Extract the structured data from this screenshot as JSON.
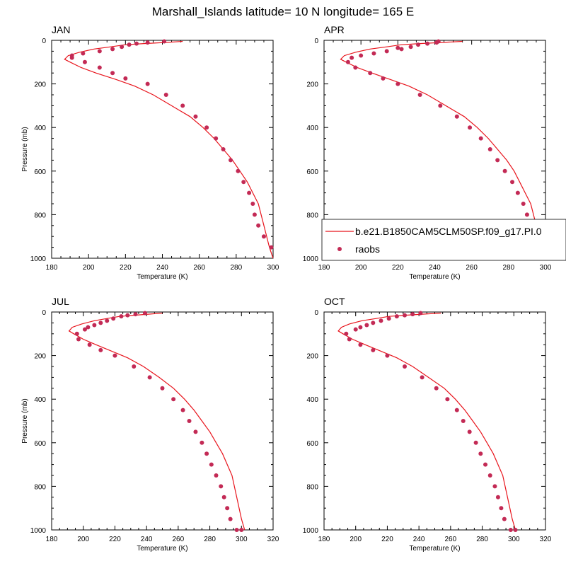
{
  "title": "Marshall_Islands  latitude= 10 N longitude= 165 E",
  "colors": {
    "model": "#e8141c",
    "obs": "#c32a55"
  },
  "legend": {
    "model_label": "b.e21.B1850CAM5CLM50SP.f09_g17.PI.0",
    "obs_label": "raobs"
  },
  "chart_data": [
    {
      "type": "line",
      "title": "JAN",
      "xlabel": "Temperature (K)",
      "ylabel": "Pressure (mb)",
      "xlim": [
        180,
        300
      ],
      "ylim": [
        1000,
        0
      ],
      "xticks": [
        180,
        200,
        220,
        240,
        260,
        280,
        300
      ],
      "yticks": [
        0,
        200,
        400,
        600,
        800,
        1000
      ],
      "show_ylabel": true,
      "series": [
        {
          "name": "b.e21.B1850CAM5CLM50SP.f09_g17.PI.0",
          "style": "line",
          "x": [
            251,
            241,
            230,
            220,
            212,
            203,
            195,
            189,
            187,
            190,
            196,
            204,
            215,
            225,
            235,
            245,
            255,
            262,
            268,
            273,
            278,
            282,
            286,
            289,
            292,
            295,
            298,
            300
          ],
          "y": [
            5,
            10,
            15,
            20,
            30,
            40,
            55,
            70,
            87,
            100,
            125,
            150,
            180,
            210,
            250,
            300,
            350,
            400,
            450,
            500,
            550,
            600,
            650,
            700,
            750,
            850,
            950,
            1000
          ]
        },
        {
          "name": "raobs",
          "style": "markers",
          "x": [
            241,
            232,
            226,
            222,
            218,
            213,
            206,
            197,
            191,
            191,
            198,
            206,
            213,
            220,
            232,
            242,
            251,
            258,
            264,
            269,
            273,
            277,
            281,
            284,
            287,
            289,
            290,
            292,
            295,
            299
          ],
          "y": [
            5,
            10,
            15,
            20,
            30,
            40,
            50,
            60,
            70,
            80,
            100,
            125,
            150,
            175,
            200,
            250,
            300,
            350,
            400,
            450,
            500,
            550,
            600,
            650,
            700,
            750,
            800,
            850,
            900,
            950
          ]
        }
      ]
    },
    {
      "type": "line",
      "title": "APR",
      "xlabel": "Temperature (K)",
      "ylabel": "",
      "xlim": [
        180,
        300
      ],
      "ylim": [
        1000,
        0
      ],
      "xticks": [
        180,
        200,
        220,
        240,
        260,
        280,
        300
      ],
      "yticks": [
        0,
        200,
        400,
        600,
        800,
        1000
      ],
      "show_ylabel": false,
      "series": [
        {
          "name": "b.e21.B1850CAM5CLM50SP.f09_g17.PI.0",
          "style": "line",
          "x": [
            255,
            243,
            232,
            222,
            214,
            205,
            197,
            191,
            189,
            192,
            198,
            206,
            216,
            226,
            236,
            246,
            256,
            263,
            269,
            274,
            279,
            283,
            286,
            289,
            292,
            295,
            298,
            300
          ],
          "y": [
            5,
            10,
            15,
            20,
            30,
            40,
            55,
            70,
            87,
            100,
            125,
            150,
            180,
            210,
            250,
            300,
            350,
            400,
            450,
            500,
            550,
            600,
            650,
            700,
            750,
            850,
            950,
            1000
          ]
        },
        {
          "name": "raobs",
          "style": "markers",
          "x": [
            242,
            241,
            236,
            231,
            227,
            222,
            220,
            214,
            207,
            200,
            195,
            193,
            197,
            205,
            212,
            220,
            232,
            243,
            252,
            259,
            265,
            270,
            274,
            278,
            282,
            285,
            288,
            290,
            292,
            296,
            300
          ],
          "y": [
            5,
            10,
            15,
            20,
            30,
            40,
            35,
            50,
            60,
            70,
            80,
            100,
            125,
            150,
            175,
            200,
            250,
            300,
            350,
            400,
            450,
            500,
            550,
            600,
            650,
            700,
            750,
            800,
            850,
            950,
            1000
          ]
        }
      ]
    },
    {
      "type": "line",
      "title": "JUL",
      "xlabel": "Temperature (K)",
      "ylabel": "Pressure (mb)",
      "xlim": [
        180,
        320
      ],
      "ylim": [
        1000,
        0
      ],
      "xticks": [
        180,
        200,
        220,
        240,
        260,
        280,
        300,
        320
      ],
      "yticks": [
        0,
        200,
        400,
        600,
        800,
        1000
      ],
      "show_ylabel": true,
      "series": [
        {
          "name": "b.e21.B1850CAM5CLM50SP.f09_g17.PI.0",
          "style": "line",
          "x": [
            250,
            241,
            232,
            223,
            215,
            207,
            199,
            193,
            191,
            194,
            200,
            208,
            218,
            228,
            238,
            248,
            257,
            264,
            270,
            275,
            280,
            284,
            288,
            291,
            294,
            297,
            300,
            302
          ],
          "y": [
            5,
            10,
            15,
            20,
            30,
            40,
            55,
            70,
            87,
            100,
            125,
            150,
            180,
            210,
            250,
            300,
            350,
            400,
            450,
            500,
            550,
            600,
            650,
            700,
            750,
            850,
            950,
            1000
          ]
        },
        {
          "name": "raobs",
          "style": "markers",
          "x": [
            239,
            233,
            228,
            224,
            219,
            215,
            211,
            207,
            203,
            201,
            196,
            197,
            204,
            211,
            220,
            232,
            242,
            250,
            257,
            263,
            267,
            271,
            275,
            278,
            281,
            284,
            287,
            289,
            291,
            293,
            297,
            300
          ],
          "y": [
            5,
            10,
            15,
            20,
            30,
            40,
            50,
            60,
            70,
            80,
            100,
            125,
            150,
            175,
            200,
            250,
            300,
            350,
            400,
            450,
            500,
            550,
            600,
            650,
            700,
            750,
            800,
            850,
            900,
            950,
            1000,
            1000
          ]
        }
      ]
    },
    {
      "type": "line",
      "title": "OCT",
      "xlabel": "Temperature (K)",
      "ylabel": "",
      "xlim": [
        180,
        320
      ],
      "ylim": [
        1000,
        0
      ],
      "xticks": [
        180,
        200,
        220,
        240,
        260,
        280,
        300,
        320
      ],
      "yticks": [
        0,
        200,
        400,
        600,
        800,
        1000
      ],
      "show_ylabel": false,
      "series": [
        {
          "name": "b.e21.B1850CAM5CLM50SP.f09_g17.PI.0",
          "style": "line",
          "x": [
            254,
            242,
            231,
            221,
            213,
            204,
            196,
            191,
            189,
            192,
            198,
            206,
            216,
            226,
            236,
            246,
            256,
            263,
            269,
            274,
            279,
            283,
            287,
            290,
            293,
            296,
            299,
            301
          ],
          "y": [
            5,
            10,
            15,
            20,
            30,
            40,
            55,
            70,
            87,
            100,
            125,
            150,
            180,
            210,
            250,
            300,
            350,
            400,
            450,
            500,
            550,
            600,
            650,
            700,
            750,
            850,
            950,
            1000
          ]
        },
        {
          "name": "raobs",
          "style": "markers",
          "x": [
            241,
            236,
            231,
            226,
            221,
            216,
            211,
            207,
            203,
            200,
            194,
            196,
            203,
            211,
            220,
            231,
            242,
            251,
            258,
            264,
            268,
            272,
            276,
            279,
            282,
            285,
            288,
            290,
            292,
            294,
            298,
            301
          ],
          "y": [
            5,
            10,
            15,
            20,
            30,
            40,
            50,
            60,
            70,
            80,
            100,
            125,
            150,
            175,
            200,
            250,
            300,
            350,
            400,
            450,
            500,
            550,
            600,
            650,
            700,
            750,
            800,
            850,
            900,
            950,
            1000,
            1000
          ]
        }
      ]
    }
  ]
}
